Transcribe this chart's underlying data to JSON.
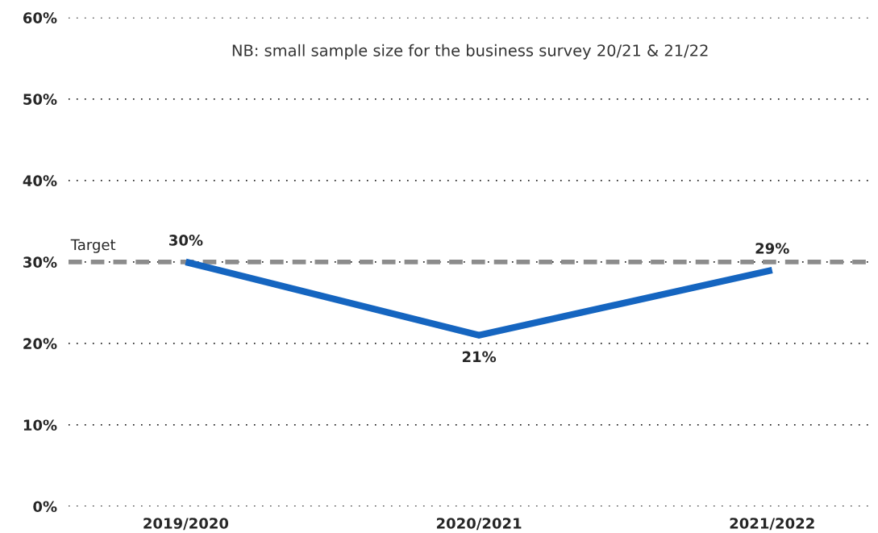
{
  "chart_data": {
    "type": "line",
    "categories": [
      "2019/2020",
      "2020/2021",
      "2021/2022"
    ],
    "series": [
      {
        "color": "#1565c0",
        "values": [
          30,
          21,
          29
        ],
        "value_labels": [
          "30%",
          "21%",
          "29%"
        ]
      }
    ],
    "ylim": [
      0,
      60
    ],
    "yticks": [
      {
        "value": 0,
        "label": "0%"
      },
      {
        "value": 10,
        "label": "10%"
      },
      {
        "value": 20,
        "label": "20%"
      },
      {
        "value": 30,
        "label": "30%"
      },
      {
        "value": 40,
        "label": "40%"
      },
      {
        "value": 50,
        "label": "50%"
      },
      {
        "value": 60,
        "label": "60%"
      }
    ],
    "grid": "y",
    "marker": "none",
    "line_style": "solid",
    "ref_lines": [
      {
        "axis": "y",
        "value": 30,
        "label": "Target",
        "color": "#8c8c8c",
        "line_style": "dashed"
      }
    ],
    "annotations": [
      "NB: small sample size for the business survey 20/21 & 21/22"
    ],
    "legend": false
  }
}
